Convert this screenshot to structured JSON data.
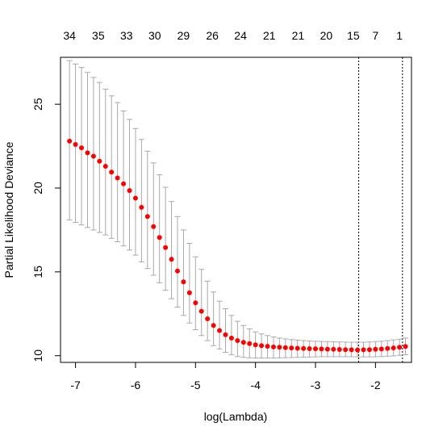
{
  "chart_data": {
    "type": "scatter",
    "title": "",
    "xlabel": "log(Lambda)",
    "ylabel": "Partial Likelihood Deviance",
    "xlim": [
      -7.25,
      -1.4
    ],
    "ylim": [
      9.6,
      27.8
    ],
    "x_ticks": [
      -7,
      -6,
      -5,
      -4,
      -3,
      -2
    ],
    "y_ticks": [
      10,
      15,
      20,
      25
    ],
    "top_axis": {
      "label_values": [
        "34",
        "35",
        "33",
        "30",
        "29",
        "26",
        "24",
        "21",
        "21",
        "20",
        "15",
        "7",
        "1"
      ],
      "label_positions_x": [
        -7.1,
        -6.62,
        -6.15,
        -5.68,
        -5.2,
        -4.72,
        -4.25,
        -3.77,
        -3.29,
        -2.82,
        -2.37,
        -2.0,
        -1.6
      ]
    },
    "reference_lines_x": [
      -2.28,
      -1.55
    ],
    "grid": false,
    "legend": "none",
    "colors": {
      "point": "#ff0000",
      "error_bar": "#a8a8a8",
      "reference_line": "#000000",
      "axis": "#000000"
    },
    "series": [
      {
        "x": [
          -7.1,
          -7.0,
          -6.9,
          -6.8,
          -6.7,
          -6.6,
          -6.5,
          -6.4,
          -6.3,
          -6.2,
          -6.1,
          -6.0,
          -5.9,
          -5.8,
          -5.7,
          -5.6,
          -5.5,
          -5.4,
          -5.3,
          -5.2,
          -5.1,
          -5.0,
          -4.9,
          -4.8,
          -4.7,
          -4.6,
          -4.5,
          -4.4,
          -4.3,
          -4.2,
          -4.1,
          -4.0,
          -3.9,
          -3.8,
          -3.7,
          -3.6,
          -3.5,
          -3.4,
          -3.3,
          -3.2,
          -3.1,
          -3.0,
          -2.9,
          -2.8,
          -2.7,
          -2.6,
          -2.5,
          -2.4,
          -2.3,
          -2.2,
          -2.1,
          -2.0,
          -1.9,
          -1.8,
          -1.7,
          -1.6,
          -1.5
        ],
        "y": [
          22.8,
          22.6,
          22.4,
          22.1,
          21.9,
          21.6,
          21.3,
          20.95,
          20.6,
          20.25,
          19.85,
          19.4,
          18.85,
          18.3,
          17.7,
          17.05,
          16.45,
          15.75,
          15.05,
          14.4,
          13.75,
          13.15,
          12.65,
          12.2,
          11.8,
          11.5,
          11.25,
          11.05,
          10.9,
          10.8,
          10.72,
          10.65,
          10.6,
          10.56,
          10.52,
          10.5,
          10.48,
          10.46,
          10.44,
          10.43,
          10.42,
          10.41,
          10.4,
          10.39,
          10.38,
          10.37,
          10.36,
          10.35,
          10.34,
          10.35,
          10.36,
          10.38,
          10.4,
          10.43,
          10.46,
          10.5,
          10.55
        ],
        "upper": [
          27.6,
          27.4,
          27.2,
          26.9,
          26.6,
          26.3,
          25.9,
          25.5,
          25.1,
          24.6,
          24.1,
          23.55,
          22.9,
          22.2,
          21.5,
          20.8,
          20.05,
          19.2,
          18.3,
          17.5,
          16.7,
          15.9,
          15.15,
          14.45,
          13.8,
          13.25,
          12.8,
          12.4,
          12.05,
          11.8,
          11.6,
          11.42,
          11.3,
          11.2,
          11.12,
          11.05,
          11.0,
          10.96,
          10.93,
          10.9,
          10.88,
          10.86,
          10.85,
          10.84,
          10.83,
          10.82,
          10.81,
          10.8,
          10.8,
          10.8,
          10.82,
          10.84,
          10.86,
          10.9,
          10.94,
          10.98,
          11.05
        ],
        "lower": [
          18.1,
          17.95,
          17.8,
          17.65,
          17.5,
          17.35,
          17.2,
          17.0,
          16.8,
          16.55,
          16.3,
          16.0,
          15.6,
          15.2,
          14.8,
          14.35,
          13.9,
          13.4,
          12.9,
          12.4,
          11.95,
          11.55,
          11.2,
          10.9,
          10.6,
          10.4,
          10.2,
          10.05,
          9.95,
          9.9,
          9.87,
          9.86,
          9.86,
          9.86,
          9.86,
          9.87,
          9.88,
          9.89,
          9.9,
          9.91,
          9.92,
          9.93,
          9.94,
          9.94,
          9.94,
          9.94,
          9.94,
          9.94,
          9.93,
          9.93,
          9.93,
          9.94,
          9.95,
          9.97,
          9.99,
          10.02,
          10.06
        ]
      }
    ]
  }
}
